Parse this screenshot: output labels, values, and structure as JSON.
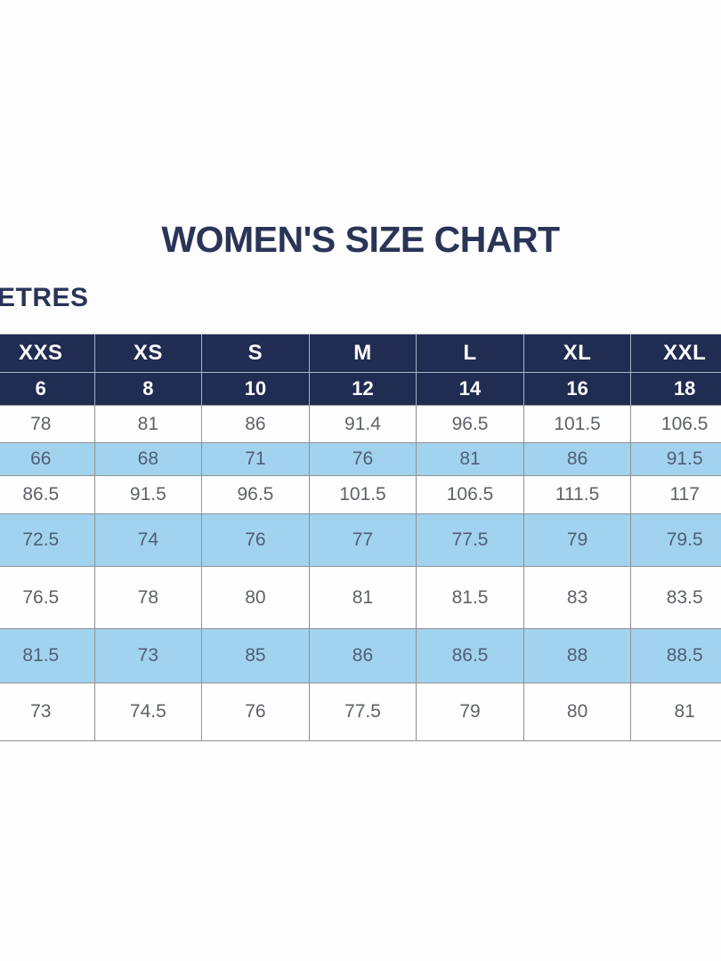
{
  "page": {
    "title": "WOMEN'S SIZE CHART",
    "unit_label": "ETRES"
  },
  "colors": {
    "page_bg": "#fdfdfd",
    "title_text": "#2a3457",
    "header_bg": "#202c52",
    "header_text": "#ffffff",
    "header_border": "#a9b3c9",
    "data_border": "#8f9092",
    "row_bg": "#fefefe",
    "highlight_row_bg": "#a2d3ee",
    "cell_text": "#5e6268",
    "highlight_cell_text": "#4e5f76"
  },
  "size_chart": {
    "size_labels": [
      "XXS",
      "XS",
      "S",
      "M",
      "L",
      "XL",
      "XXL"
    ],
    "size_numbers": [
      "6",
      "8",
      "10",
      "12",
      "14",
      "16",
      "18"
    ],
    "measurement_rows": [
      {
        "highlight": false,
        "values": [
          "78",
          "81",
          "86",
          "91.4",
          "96.5",
          "101.5",
          "106.5"
        ]
      },
      {
        "highlight": true,
        "values": [
          "66",
          "68",
          "71",
          "76",
          "81",
          "86",
          "91.5"
        ]
      },
      {
        "highlight": false,
        "values": [
          "86.5",
          "91.5",
          "96.5",
          "101.5",
          "106.5",
          "111.5",
          "117"
        ]
      },
      {
        "highlight": true,
        "values": [
          "72.5",
          "74",
          "76",
          "77",
          "77.5",
          "79",
          "79.5"
        ]
      },
      {
        "highlight": false,
        "values": [
          "76.5",
          "78",
          "80",
          "81",
          "81.5",
          "83",
          "83.5"
        ]
      },
      {
        "highlight": true,
        "values": [
          "81.5",
          "73",
          "85",
          "86",
          "86.5",
          "88",
          "88.5"
        ]
      },
      {
        "highlight": false,
        "values": [
          "73",
          "74.5",
          "76",
          "77.5",
          "79",
          "80",
          "81"
        ]
      }
    ]
  }
}
